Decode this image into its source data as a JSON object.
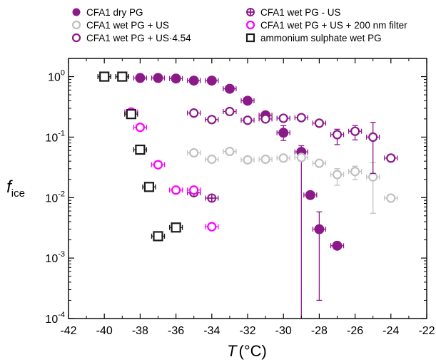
{
  "chart_data": {
    "type": "scatter",
    "x_label": {
      "symbol": "T",
      "unit": "(°C)"
    },
    "y_label": {
      "symbol": "f",
      "sub": "ice"
    },
    "xlim": [
      -42,
      -22
    ],
    "ylim": [
      0.0001,
      2
    ],
    "y_scale": "log",
    "x_ticks": [
      -42,
      -40,
      -38,
      -36,
      -34,
      -32,
      -30,
      -28,
      -26,
      -24,
      -22
    ],
    "x_tick_labels": [
      "-42",
      "-40",
      "-38",
      "-36",
      "-34",
      "-32",
      "-30",
      "-28",
      "-26",
      "-24",
      "-22"
    ],
    "y_ticks": [
      {
        "value": 0.0001,
        "base": "10",
        "exp": "-4"
      },
      {
        "value": 0.001,
        "base": "10",
        "exp": "-3"
      },
      {
        "value": 0.01,
        "base": "10",
        "exp": "-2"
      },
      {
        "value": 0.1,
        "base": "10",
        "exp": "-1"
      },
      {
        "value": 1,
        "base": "10",
        "exp": "0"
      }
    ],
    "legend_position": "top",
    "series": [
      {
        "name": "CFA1 dry PG",
        "marker": "filled-circle",
        "color": "#8b1a89",
        "points": [
          {
            "x": -40,
            "y": 1.0
          },
          {
            "x": -39,
            "y": 1.0
          },
          {
            "x": -38,
            "y": 0.95
          },
          {
            "x": -37,
            "y": 0.95
          },
          {
            "x": -36,
            "y": 0.93
          },
          {
            "x": -35,
            "y": 0.86
          },
          {
            "x": -34,
            "y": 0.86
          },
          {
            "x": -33,
            "y": 0.63
          },
          {
            "x": -32,
            "y": 0.4
          },
          {
            "x": -31,
            "y": 0.23
          },
          {
            "x": -30,
            "y": 0.118,
            "ylo": 0.088,
            "yhi": 0.155
          },
          {
            "x": -29,
            "y": 0.057,
            "ylo": 0.0001,
            "yhi": 0.072
          },
          {
            "x": -28.5,
            "y": 0.011
          },
          {
            "x": -28,
            "y": 0.003,
            "ylo": 0.0002,
            "yhi": 0.0058
          },
          {
            "x": -27,
            "y": 0.0016
          }
        ]
      },
      {
        "name": "CFA1 wet PG + US",
        "marker": "open-circle",
        "color": "#c0c0c0",
        "points": [
          {
            "x": -35,
            "y": 0.055
          },
          {
            "x": -34,
            "y": 0.043
          },
          {
            "x": -33,
            "y": 0.058
          },
          {
            "x": -32,
            "y": 0.042
          },
          {
            "x": -31,
            "y": 0.043
          },
          {
            "x": -30,
            "y": 0.045
          },
          {
            "x": -29,
            "y": 0.046
          },
          {
            "x": -28,
            "y": 0.037
          },
          {
            "x": -27,
            "y": 0.024,
            "ylo": 0.016,
            "yhi": 0.03
          },
          {
            "x": -26,
            "y": 0.027,
            "ylo": 0.02,
            "yhi": 0.033
          },
          {
            "x": -25,
            "y": 0.022,
            "ylo": 0.0055,
            "yhi": 0.038
          },
          {
            "x": -24,
            "y": 0.0098
          }
        ]
      },
      {
        "name": "CFA1 wet PG + US·4.54",
        "marker": "open-circle",
        "color": "#8b1a89",
        "points": [
          {
            "x": -35,
            "y": 0.25
          },
          {
            "x": -34,
            "y": 0.195
          },
          {
            "x": -33,
            "y": 0.265
          },
          {
            "x": -32,
            "y": 0.19
          },
          {
            "x": -31,
            "y": 0.2
          },
          {
            "x": -30,
            "y": 0.205
          },
          {
            "x": -29,
            "y": 0.21
          },
          {
            "x": -28,
            "y": 0.17
          },
          {
            "x": -27,
            "y": 0.11,
            "ylo": 0.075,
            "yhi": 0.135
          },
          {
            "x": -26,
            "y": 0.125,
            "ylo": 0.09,
            "yhi": 0.155
          },
          {
            "x": -25,
            "y": 0.1,
            "ylo": 0.025,
            "yhi": 0.175
          },
          {
            "x": -24,
            "y": 0.045
          }
        ]
      },
      {
        "name": "CFA1 wet PG - US",
        "marker": "crossed-circle",
        "color": "#8b1a89",
        "points": [
          {
            "x": -35,
            "y": 0.012
          },
          {
            "x": -34,
            "y": 0.0098
          }
        ]
      },
      {
        "name": "CFA1 wet PG + US + 200 nm filter",
        "marker": "open-circle",
        "color": "#ff00ff",
        "points": [
          {
            "x": -38.5,
            "y": 0.26
          },
          {
            "x": -38,
            "y": 0.145
          },
          {
            "x": -37,
            "y": 0.035
          },
          {
            "x": -36,
            "y": 0.0133
          },
          {
            "x": -35,
            "y": 0.0133
          },
          {
            "x": -34,
            "y": 0.0033
          }
        ]
      },
      {
        "name": "ammonium sulphate wet PG",
        "marker": "open-square",
        "color": "#1a1a1a",
        "points": [
          {
            "x": -40,
            "y": 1.0
          },
          {
            "x": -39,
            "y": 1.0
          },
          {
            "x": -38.5,
            "y": 0.24
          },
          {
            "x": -38,
            "y": 0.062
          },
          {
            "x": -37.5,
            "y": 0.015
          },
          {
            "x": -37,
            "y": 0.0023
          },
          {
            "x": -36,
            "y": 0.0032
          }
        ]
      }
    ]
  }
}
